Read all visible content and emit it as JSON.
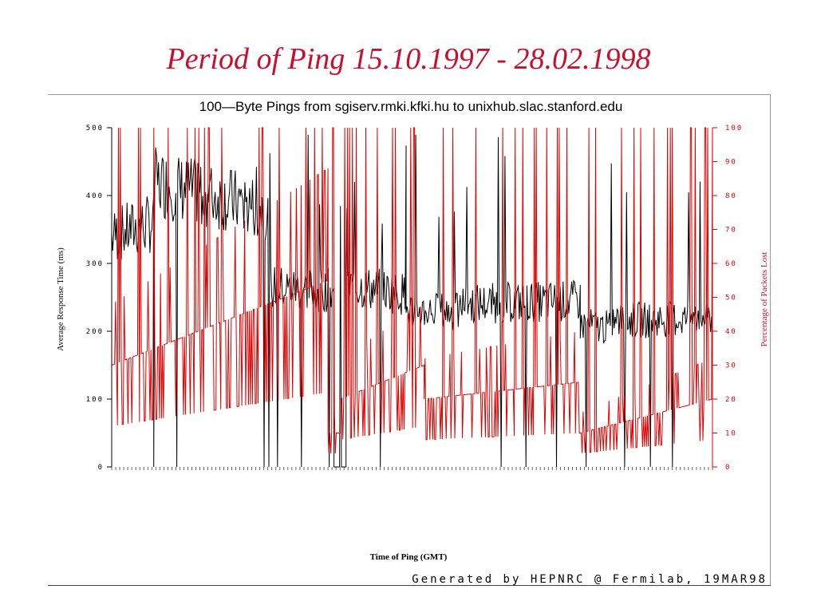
{
  "slide": {
    "title": "Period of Ping 15.10.1997 - 28.02.1998",
    "footer": "Generated by HEPNRC @ Fermilab, 19MAR98"
  },
  "chart_data": {
    "type": "line",
    "title": "100—Byte Pings from sgiserv.rmki.kfki.hu to unixhub.slac.stanford.edu",
    "xlabel": "Time of Ping (GMT)",
    "ylabel": "Average Response Time (ms)",
    "ylabel_right": "Percentage of Packets Lost",
    "ylim": [
      0,
      500
    ],
    "ylim_right": [
      0,
      100
    ],
    "yticks": [
      "0",
      "100",
      "200",
      "300",
      "400",
      "500"
    ],
    "yticks_right": [
      "0",
      "10",
      "20",
      "30",
      "40",
      "50",
      "60",
      "70",
      "80",
      "90",
      "100"
    ],
    "x_range": [
      "15.10.1997",
      "28.02.1998"
    ],
    "grid": false,
    "series": [
      {
        "color": "#000000",
        "axis": "left",
        "segments": [
          {
            "x": [
              0.0,
              0.07
            ],
            "y": [
              340,
              360
            ]
          },
          {
            "x": [
              0.07,
              0.26
            ],
            "y": [
              420,
              380
            ]
          },
          {
            "x": [
              0.26,
              0.37
            ],
            "y": [
              265,
              260
            ]
          },
          {
            "x": [
              0.37,
              0.39
            ],
            "y": [
              0,
              0
            ]
          },
          {
            "x": [
              0.39,
              0.49
            ],
            "y": [
              268,
              255
            ]
          },
          {
            "x": [
              0.49,
              0.58
            ],
            "y": [
              232,
              228
            ]
          },
          {
            "x": [
              0.58,
              0.78
            ],
            "y": [
              240,
              245
            ]
          },
          {
            "x": [
              0.78,
              0.83
            ],
            "y": [
              210,
              205
            ]
          },
          {
            "x": [
              0.83,
              1.0
            ],
            "y": [
              215,
              220
            ]
          }
        ]
      },
      {
        "color": "#e00000",
        "axis": "right",
        "segments": [
          {
            "x": [
              0.0,
              0.36
            ],
            "y": [
              30,
              55
            ]
          },
          {
            "x": [
              0.36,
              0.38
            ],
            "y": [
              10,
              10
            ]
          },
          {
            "x": [
              0.38,
              0.52
            ],
            "y": [
              20,
              30
            ]
          },
          {
            "x": [
              0.52,
              0.78
            ],
            "y": [
              20,
              25
            ]
          },
          {
            "x": [
              0.78,
              1.0
            ],
            "y": [
              10,
              20
            ]
          }
        ]
      }
    ]
  }
}
